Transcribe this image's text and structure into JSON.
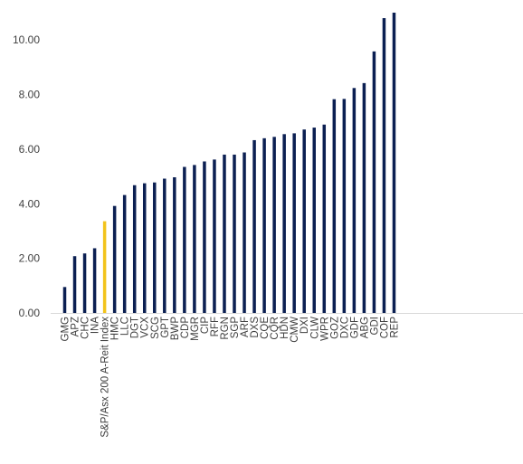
{
  "chart_data": {
    "type": "bar",
    "title": "",
    "xlabel": "",
    "ylabel": "",
    "ylim": [
      0,
      11
    ],
    "yticks": [
      0,
      2,
      4,
      6,
      8,
      10
    ],
    "ytick_labels": [
      "0.00",
      "2.00",
      "4.00",
      "6.00",
      "8.00",
      "10.00"
    ],
    "grid": false,
    "legend": "none",
    "colors": {
      "bar": "#0b1f52",
      "highlight": "#f2c31b",
      "axis": "#d9d9d9"
    },
    "highlight_category": "S&P/Asx 200 A-Reit Index",
    "categories": [
      "GMG",
      "APZ",
      "CHC",
      "INA",
      "S&P/Asx 200 A-Reit Index",
      "HMC",
      "LLC",
      "DGT",
      "VCX",
      "SCG",
      "GPT",
      "BWP",
      "CDP",
      "MGR",
      "CIP",
      "RFF",
      "RGN",
      "SGP",
      "ARF",
      "DXS",
      "CQE",
      "CQR",
      "HDN",
      "CMW",
      "DXI",
      "CLW",
      "WPR",
      "GOZ",
      "DXC",
      "GDF",
      "ABG",
      "GDI",
      "COF",
      "REP"
    ],
    "values": [
      0.95,
      2.08,
      2.18,
      2.37,
      3.36,
      3.92,
      4.32,
      4.68,
      4.75,
      4.78,
      4.92,
      4.97,
      5.35,
      5.42,
      5.55,
      5.62,
      5.8,
      5.8,
      5.88,
      6.33,
      6.4,
      6.45,
      6.55,
      6.58,
      6.72,
      6.79,
      6.9,
      7.83,
      7.84,
      8.24,
      8.42,
      9.58,
      10.8,
      11.0
    ]
  }
}
